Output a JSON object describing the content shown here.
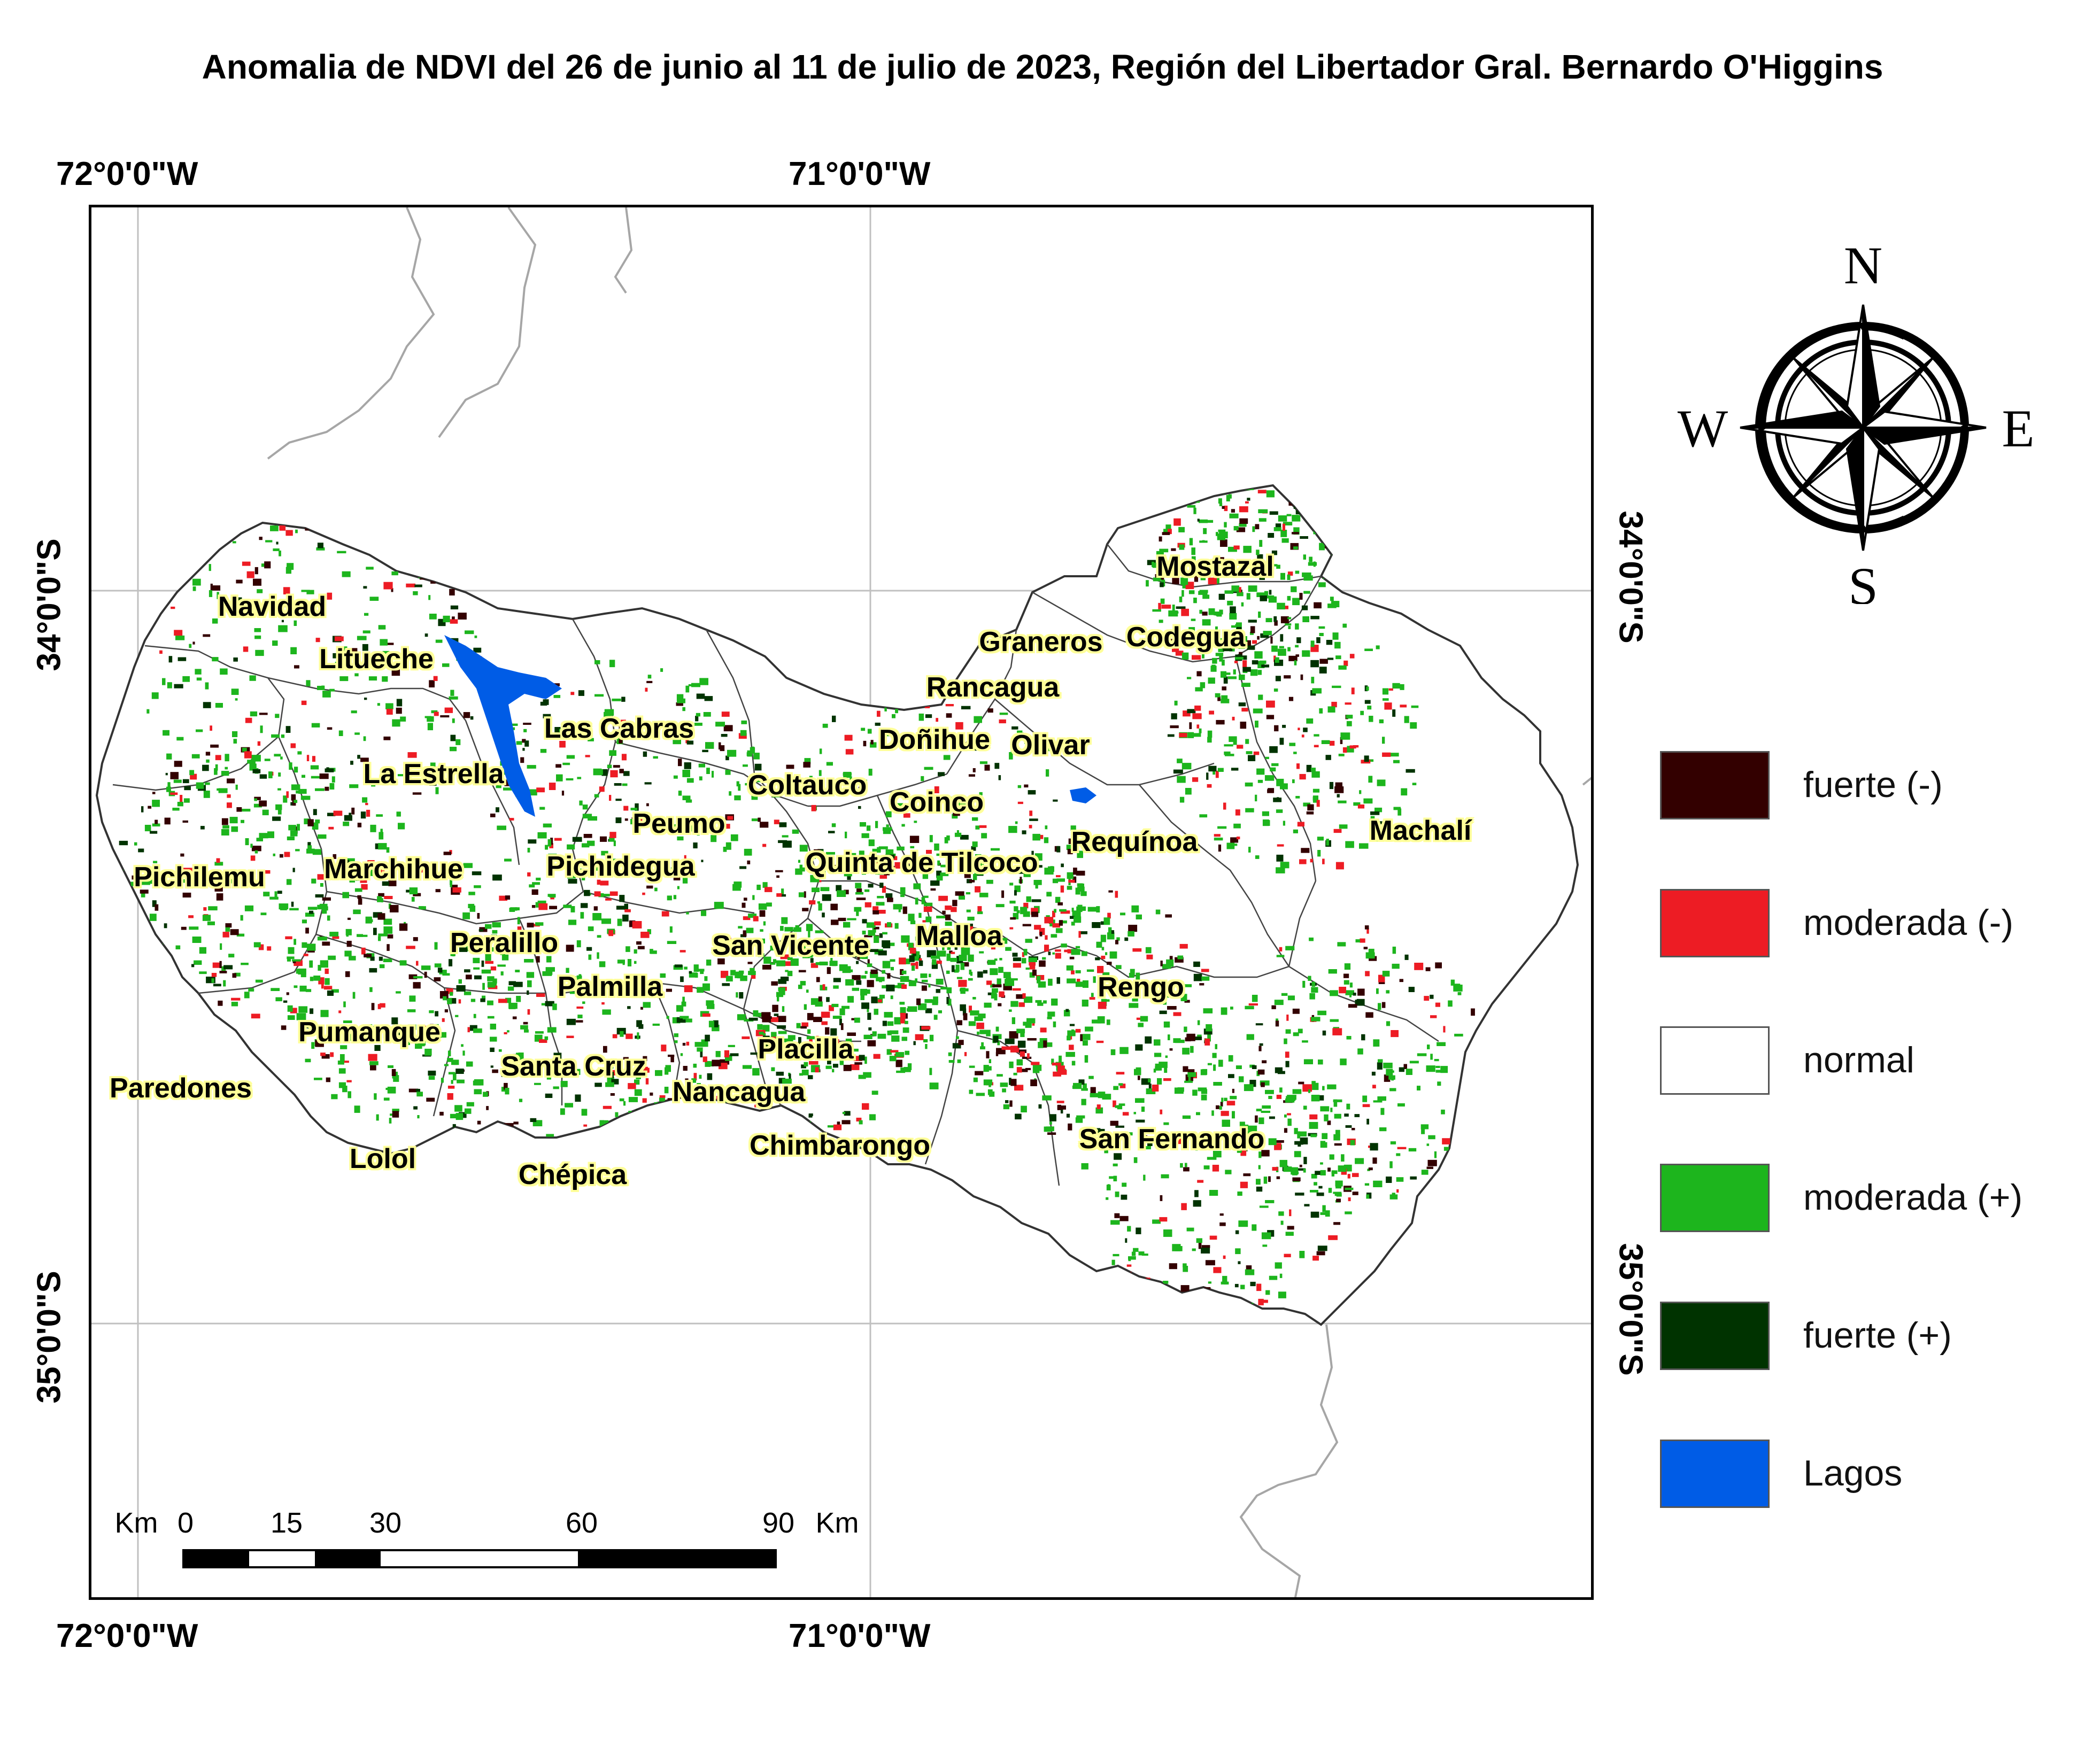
{
  "title": "Anomalia de NDVI del 26 de junio al 11 de julio de 2023, Región del Libertador Gral. Bernardo O'Higgins",
  "graticule": {
    "top": [
      "72°0'0\"W",
      "71°0'0\"W"
    ],
    "bottom": [
      "72°0'0\"W",
      "71°0'0\"W"
    ],
    "left": [
      "34°0'0\"S",
      "35°0'0\"S"
    ],
    "right": [
      "34°0'0\"S",
      "35°0'0\"S"
    ]
  },
  "places": [
    "Navidad",
    "Litueche",
    "Las Cabras",
    "La Estrella",
    "Pichilemu",
    "Marchihue",
    "Pichidegua",
    "Peumo",
    "Coltauco",
    "Doñihue",
    "Olivar",
    "Graneros",
    "Codegua",
    "Mostazal",
    "Rancagua",
    "Coinco",
    "Quinta de Tilcoco",
    "Requínoa",
    "Machalí",
    "Peralillo",
    "San Vicente",
    "Malloa",
    "Palmilla",
    "Rengo",
    "Pumanque",
    "Santa Cruz",
    "Placilla",
    "Paredones",
    "Nancagua",
    "Chimbarongo",
    "San Fernando",
    "Lolol",
    "Chépica"
  ],
  "scale_bar": {
    "unit_left": "Km",
    "ticks": [
      "0",
      "15",
      "30",
      "60",
      "90"
    ],
    "unit_right": "Km"
  },
  "compass": {
    "n": "N",
    "s": "S",
    "e": "E",
    "w": "W"
  },
  "legend": [
    {
      "label": "fuerte (-)",
      "color": "#330000"
    },
    {
      "label": "moderada (-)",
      "color": "#ed1c24"
    },
    {
      "label": "normal",
      "color": "#ffffff"
    },
    {
      "label": "moderada (+)",
      "color": "#1db51d"
    },
    {
      "label": "fuerte (+)",
      "color": "#003300"
    },
    {
      "label": "Lagos",
      "color": "#005ce6"
    }
  ]
}
